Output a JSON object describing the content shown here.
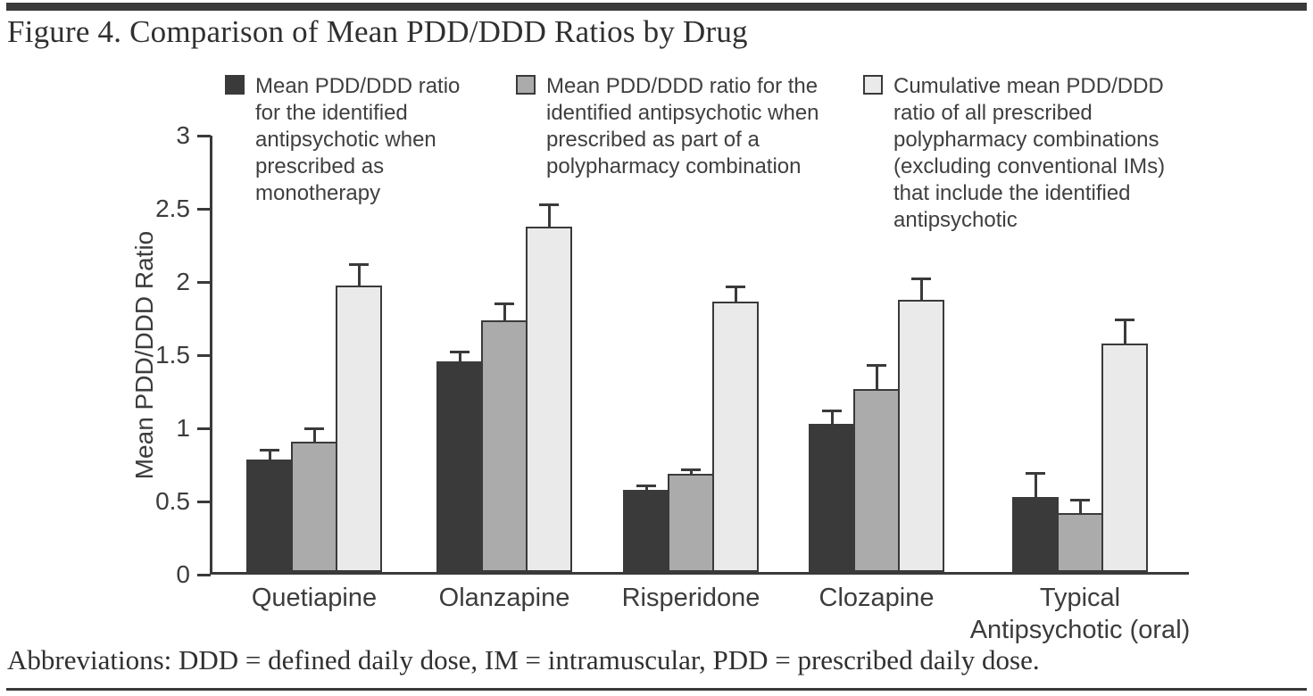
{
  "figure": {
    "title": "Figure 4. Comparison of Mean PDD/DDD Ratios by Drug",
    "footnote": "Abbreviations: DDD = defined daily dose, IM = intramuscular, PDD = prescribed daily dose."
  },
  "chart_data": {
    "type": "bar",
    "title": "Figure 4. Comparison of Mean PDD/DDD Ratios by Drug",
    "ylabel": "Mean PDD/DDD Ratio",
    "xlabel": "",
    "ylim": [
      0,
      3
    ],
    "yticks": [
      0,
      0.5,
      1,
      1.5,
      2,
      2.5,
      3
    ],
    "grid": false,
    "legend_position": "top",
    "error_bars": true,
    "axis_color": "#3a3a3a",
    "categories": [
      "Quetiapine",
      "Olanzapine",
      "Risperidone",
      "Clozapine",
      "Typical Antipsychotic (oral)"
    ],
    "series": [
      {
        "name": "Mean PDD/DDD ratio for the identified antipsychotic when prescribed as monotherapy",
        "color": "#3a3a3a",
        "values": [
          0.77,
          1.44,
          0.56,
          1.01,
          0.51
        ],
        "errors": [
          0.07,
          0.07,
          0.04,
          0.1,
          0.17
        ]
      },
      {
        "name": "Mean PDD/DDD ratio for the identified antipsychotic when prescribed as part of a polypharmacy combination",
        "color": "#ababab",
        "values": [
          0.89,
          1.72,
          0.67,
          1.25,
          0.4
        ],
        "errors": [
          0.1,
          0.12,
          0.04,
          0.17,
          0.1
        ]
      },
      {
        "name": "Cumulative mean PDD/DDD ratio of all prescribed polypharmacy combinations (excluding conventional IMs) that include the identified antipsychotic",
        "color": "#eaeaea",
        "values": [
          1.96,
          2.36,
          1.85,
          1.86,
          1.56
        ],
        "errors": [
          0.15,
          0.16,
          0.11,
          0.15,
          0.17
        ]
      }
    ]
  }
}
